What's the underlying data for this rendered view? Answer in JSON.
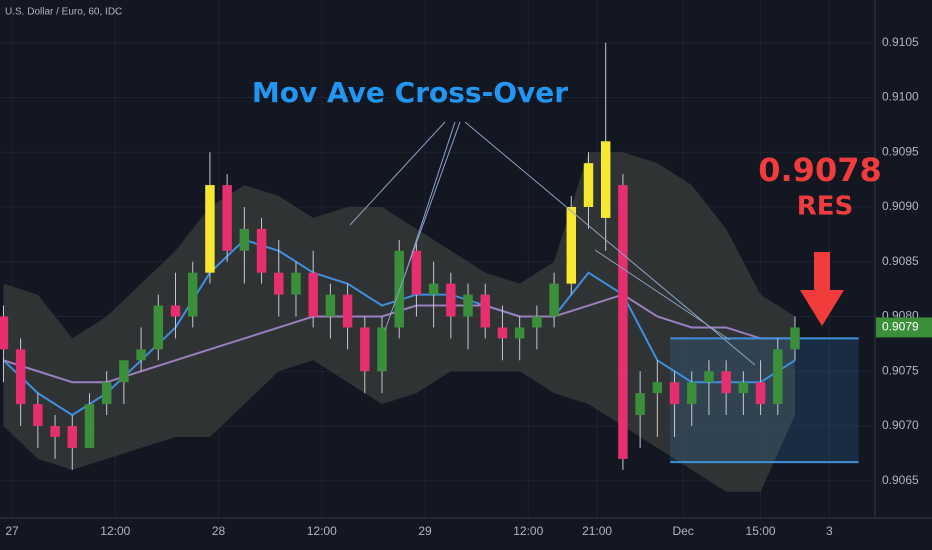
{
  "chart_data": {
    "type": "candlestick",
    "title": "U.S. Dollar / Euro, 60, IDC",
    "xlim": [
      -1.4,
      100.3
    ],
    "ylim": [
      0.90616,
      0.91089
    ],
    "xticks": [
      {
        "value": 0,
        "label": "27"
      },
      {
        "value": 12,
        "label": "12:00"
      },
      {
        "value": 24,
        "label": "28"
      },
      {
        "value": 36,
        "label": "12:00"
      },
      {
        "value": 48,
        "label": "29"
      },
      {
        "value": 60,
        "label": "12:00"
      },
      {
        "value": 68,
        "label": "21:00"
      },
      {
        "value": 78,
        "label": "Dec"
      },
      {
        "value": 87,
        "label": "15:00"
      },
      {
        "value": 95,
        "label": "3"
      }
    ],
    "yticks": [
      0.9065,
      {
        "value": 0.907,
        "label": "0.9070"
      },
      0.9075,
      {
        "value": 0.908,
        "label": "0.9080"
      },
      0.9085,
      {
        "value": 0.909,
        "label": "0.9090"
      },
      0.9095,
      {
        "value": 0.91,
        "label": "0.9100"
      },
      0.9105
    ],
    "grid": true,
    "up_color": "#3b8f3b",
    "down_color": "#e62f6e",
    "highlight_color": "#f7e731",
    "highlight_x": [
      23,
      65,
      67,
      69
    ],
    "x": [
      -1,
      1,
      3,
      5,
      7,
      9,
      11,
      13,
      15,
      17,
      19,
      21,
      23,
      25,
      27,
      29,
      31,
      33,
      35,
      37,
      39,
      41,
      43,
      45,
      47,
      49,
      51,
      53,
      55,
      57,
      59,
      61,
      63,
      65,
      67,
      69,
      71,
      73,
      75,
      77,
      79,
      81,
      83,
      85,
      87,
      89,
      91
    ],
    "open": [
      0.908,
      0.9077,
      0.9072,
      0.907,
      0.907,
      0.9068,
      0.9072,
      0.9074,
      0.9076,
      0.9077,
      0.9081,
      0.908,
      0.9084,
      0.9092,
      0.9086,
      0.9088,
      0.9084,
      0.9082,
      0.9084,
      0.908,
      0.9082,
      0.9079,
      0.9075,
      0.9079,
      0.9086,
      0.9082,
      0.9083,
      0.908,
      0.9082,
      0.9079,
      0.9078,
      0.9079,
      0.908,
      0.9083,
      0.909,
      0.9089,
      0.9092,
      0.9071,
      0.9073,
      0.9074,
      0.9072,
      0.9074,
      0.9075,
      0.9073,
      0.9074,
      0.9072,
      0.9077
    ],
    "high": [
      0.9081,
      0.9078,
      0.9073,
      0.9071,
      0.9071,
      0.9073,
      0.9075,
      0.9076,
      0.9079,
      0.9082,
      0.9084,
      0.9085,
      0.9095,
      0.9093,
      0.909,
      0.9089,
      0.9087,
      0.9085,
      0.9086,
      0.9083,
      0.9083,
      0.908,
      0.908,
      0.9087,
      0.9087,
      0.9085,
      0.9084,
      0.9083,
      0.9083,
      0.9081,
      0.908,
      0.9081,
      0.9084,
      0.9091,
      0.9095,
      0.9105,
      0.9093,
      0.9075,
      0.9076,
      0.9075,
      0.9075,
      0.9076,
      0.9076,
      0.9075,
      0.9076,
      0.9078,
      0.908
    ],
    "low": [
      0.9074,
      0.907,
      0.9068,
      0.9067,
      0.9066,
      0.9068,
      0.9071,
      0.9072,
      0.9075,
      0.9076,
      0.9078,
      0.9079,
      0.9083,
      0.9085,
      0.9083,
      0.9083,
      0.908,
      0.908,
      0.9079,
      0.9078,
      0.9077,
      0.9073,
      0.9073,
      0.9078,
      0.908,
      0.9079,
      0.9078,
      0.9077,
      0.9078,
      0.9076,
      0.9076,
      0.9077,
      0.9079,
      0.9082,
      0.9088,
      0.9086,
      0.9066,
      0.9068,
      0.9069,
      0.9069,
      0.907,
      0.9071,
      0.9071,
      0.9071,
      0.9071,
      0.9071,
      0.9076
    ],
    "close": [
      0.9077,
      0.9072,
      0.907,
      0.9069,
      0.9068,
      0.9072,
      0.9074,
      0.9076,
      0.9077,
      0.9081,
      0.908,
      0.9084,
      0.9092,
      0.9086,
      0.9088,
      0.9084,
      0.9082,
      0.9084,
      0.908,
      0.9082,
      0.9079,
      0.9075,
      0.9079,
      0.9086,
      0.9082,
      0.9083,
      0.908,
      0.9082,
      0.9079,
      0.9078,
      0.9079,
      0.908,
      0.9083,
      0.909,
      0.9094,
      0.9096,
      0.9067,
      0.9073,
      0.9074,
      0.9072,
      0.9074,
      0.9075,
      0.9073,
      0.9074,
      0.9072,
      0.9077,
      0.9079
    ],
    "indicators": {
      "x": [
        -1,
        3,
        7,
        11,
        15,
        19,
        23,
        27,
        31,
        35,
        39,
        43,
        47,
        51,
        55,
        59,
        63,
        67,
        71,
        75,
        79,
        83,
        87,
        91
      ],
      "upper": [
        0.9083,
        0.9082,
        0.9078,
        0.908,
        0.9083,
        0.9086,
        0.909,
        0.9092,
        0.9091,
        0.9089,
        0.909,
        0.909,
        0.9088,
        0.9086,
        0.9084,
        0.9083,
        0.9085,
        0.9095,
        0.9095,
        0.9094,
        0.9092,
        0.9088,
        0.9082,
        0.908
      ],
      "lower": [
        0.907,
        0.9067,
        0.9066,
        0.9067,
        0.9068,
        0.9069,
        0.9069,
        0.9072,
        0.9075,
        0.9076,
        0.9074,
        0.9072,
        0.9073,
        0.9075,
        0.9075,
        0.9075,
        0.9073,
        0.9072,
        0.907,
        0.9068,
        0.9066,
        0.9064,
        0.9064,
        0.9071
      ],
      "envelope_color": "#3a3d3a",
      "series": [
        {
          "color": "#3d8fe0",
          "values": [
            0.9076,
            0.9073,
            0.9071,
            0.9073,
            0.9076,
            0.9079,
            0.9084,
            0.9087,
            0.9086,
            0.9084,
            0.9083,
            0.9081,
            0.9082,
            0.9082,
            0.9081,
            0.908,
            0.908,
            0.9084,
            0.9082,
            0.9076,
            0.9074,
            0.9074,
            0.9074,
            0.9076
          ]
        },
        {
          "color": "#9a7fc0",
          "values": [
            0.9076,
            0.9075,
            0.9074,
            0.9074,
            0.9075,
            0.9076,
            0.9077,
            0.9078,
            0.9079,
            0.908,
            0.908,
            0.908,
            0.9081,
            0.9081,
            0.9081,
            0.908,
            0.908,
            0.9081,
            0.9082,
            0.908,
            0.9079,
            0.9079,
            0.9078,
            0.9078
          ]
        }
      ]
    },
    "zone": {
      "x": [
        76.5,
        98.4
      ],
      "top": 0.9078,
      "bottom": 0.90667,
      "color": "#3f8fd8"
    },
    "last_price": {
      "value": 0.9079,
      "label": "0.9079",
      "color": "#3b8f3b"
    },
    "annotations": {
      "crossover": "Mov Ave Cross-Over",
      "price": "0.9078",
      "res": "RES"
    }
  }
}
